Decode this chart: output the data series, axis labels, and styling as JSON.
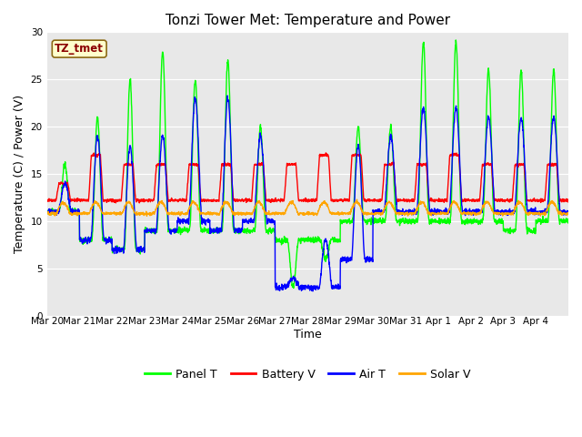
{
  "title": "Tonzi Tower Met: Temperature and Power",
  "xlabel": "Time",
  "ylabel": "Temperature (C) / Power (V)",
  "ylim": [
    0,
    30
  ],
  "yticks": [
    0,
    5,
    10,
    15,
    20,
    25,
    30
  ],
  "x_labels": [
    "Mar 20",
    "Mar 21",
    "Mar 22",
    "Mar 23",
    "Mar 24",
    "Mar 25",
    "Mar 26",
    "Mar 27",
    "Mar 28",
    "Mar 29",
    "Mar 30",
    "Mar 31",
    "Apr 1",
    "Apr 2",
    "Apr 3",
    "Apr 4"
  ],
  "annotation_text": "TZ_tmet",
  "annotation_color": "#8B0000",
  "annotation_bg": "#FFFFCC",
  "bg_color": "#E8E8E8",
  "colors": {
    "panel_t": "#00FF00",
    "battery_v": "#FF0000",
    "air_t": "#0000FF",
    "solar_v": "#FFA500"
  },
  "legend": [
    "Panel T",
    "Battery V",
    "Air T",
    "Solar V"
  ],
  "line_width": 1.0,
  "title_fontsize": 11,
  "axis_fontsize": 9,
  "tick_fontsize": 7.5
}
